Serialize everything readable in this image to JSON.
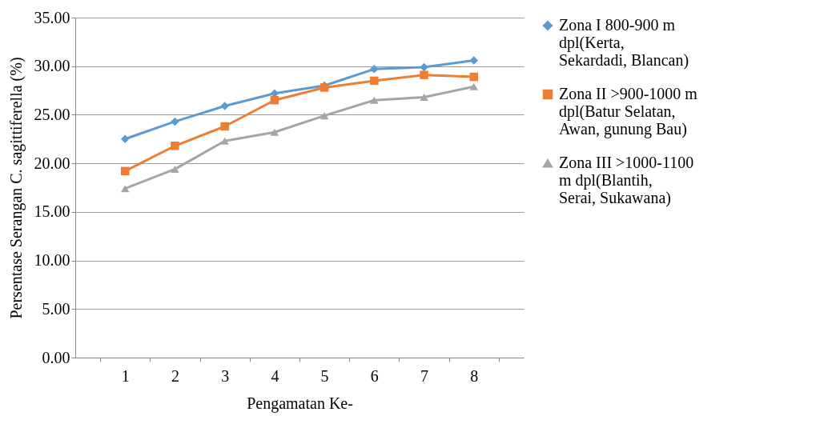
{
  "chart_data": {
    "type": "line",
    "xlabel": "Pengamatan Ke-",
    "ylabel": "Persentase Serangan C. sagittiferella (%)",
    "categories": [
      "1",
      "2",
      "3",
      "4",
      "5",
      "6",
      "7",
      "8"
    ],
    "series": [
      {
        "name": "Zona I 800-900 m dpl(Kerta, Sekardadi, Blancan)",
        "color": "#5b9bd5",
        "marker": "diamond",
        "values": [
          22.5,
          24.3,
          25.9,
          27.2,
          28.0,
          29.7,
          29.9,
          30.6
        ]
      },
      {
        "name": "Zona II >900-1000 m dpl(Batur Selatan, Awan, gunung Bau)",
        "color": "#ed7d31",
        "marker": "square",
        "values": [
          19.2,
          21.8,
          23.8,
          26.5,
          27.8,
          28.5,
          29.1,
          28.9
        ]
      },
      {
        "name": "Zona III >1000-1100 m dpl(Blantih, Serai, Sukawana)",
        "color": "#a5a5a5",
        "marker": "triangle",
        "values": [
          17.4,
          19.4,
          22.3,
          23.2,
          24.9,
          26.5,
          26.8,
          27.9
        ]
      }
    ],
    "ylim": [
      0,
      35
    ],
    "yticks": [
      {
        "value": 0,
        "label": "0.00"
      },
      {
        "value": 5,
        "label": "5.00"
      },
      {
        "value": 10,
        "label": "10.00"
      },
      {
        "value": 15,
        "label": "15.00"
      },
      {
        "value": 20,
        "label": "20.00"
      },
      {
        "value": 25,
        "label": "25.00"
      },
      {
        "value": 30,
        "label": "30.00"
      },
      {
        "value": 35,
        "label": "35.00"
      }
    ],
    "grid": "y",
    "legend": "right",
    "line_style": "solid"
  }
}
